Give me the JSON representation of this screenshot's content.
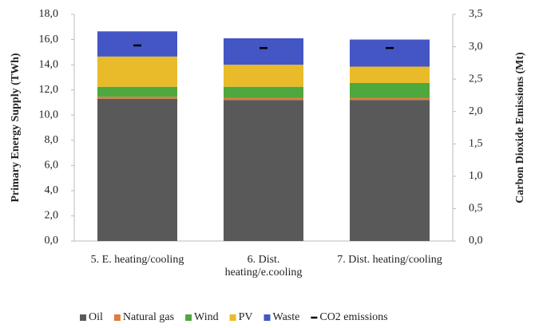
{
  "chart_data": {
    "type": "stacked_bar_with_markers",
    "categories": [
      "5. E. heating/cooling",
      "6. Dist. heating/e.cooling",
      "7. Dist. heating/cooling"
    ],
    "series": [
      {
        "name": "Oil",
        "color": "#595959",
        "values": [
          11.3,
          11.2,
          11.2
        ]
      },
      {
        "name": "Natural gas",
        "color": "#e07b39",
        "values": [
          0.15,
          0.15,
          0.15
        ]
      },
      {
        "name": "Wind",
        "color": "#4ea83e",
        "values": [
          0.8,
          0.9,
          1.2
        ]
      },
      {
        "name": "PV",
        "color": "#e9bb2a",
        "values": [
          2.4,
          1.75,
          1.3
        ]
      },
      {
        "name": "Waste",
        "color": "#4356c4",
        "values": [
          2.0,
          2.1,
          2.15
        ]
      },
      {
        "name": "CO2 emissions",
        "color": "#000000",
        "axis": "y2",
        "values": [
          3.02,
          2.98,
          2.98
        ]
      }
    ],
    "y_label": "Primary Energy Supply (TWh)",
    "y2_label": "Carbon Dioxide Emissions (Mt)",
    "ylim": [
      0,
      18
    ],
    "yticks": [
      {
        "value": 0,
        "label": "0,0"
      },
      {
        "value": 2,
        "label": "2,0"
      },
      {
        "value": 4,
        "label": "4,0"
      },
      {
        "value": 6,
        "label": "6,0"
      },
      {
        "value": 8,
        "label": "8,0"
      },
      {
        "value": 10,
        "label": "10,0"
      },
      {
        "value": 12,
        "label": "12,0"
      },
      {
        "value": 14,
        "label": "14,0"
      },
      {
        "value": 16,
        "label": "16,0"
      },
      {
        "value": 18,
        "label": "18,0"
      }
    ],
    "y2lim": [
      0,
      3.5
    ],
    "y2ticks": [
      {
        "value": 0,
        "label": "0,0"
      },
      {
        "value": 0.5,
        "label": "0,5"
      },
      {
        "value": 1,
        "label": "1,0"
      },
      {
        "value": 1.5,
        "label": "1,5"
      },
      {
        "value": 2,
        "label": "2,0"
      },
      {
        "value": 2.5,
        "label": "2,5"
      },
      {
        "value": 3,
        "label": "3,0"
      },
      {
        "value": 3.5,
        "label": "3,5"
      }
    ],
    "legend": "bottom"
  }
}
